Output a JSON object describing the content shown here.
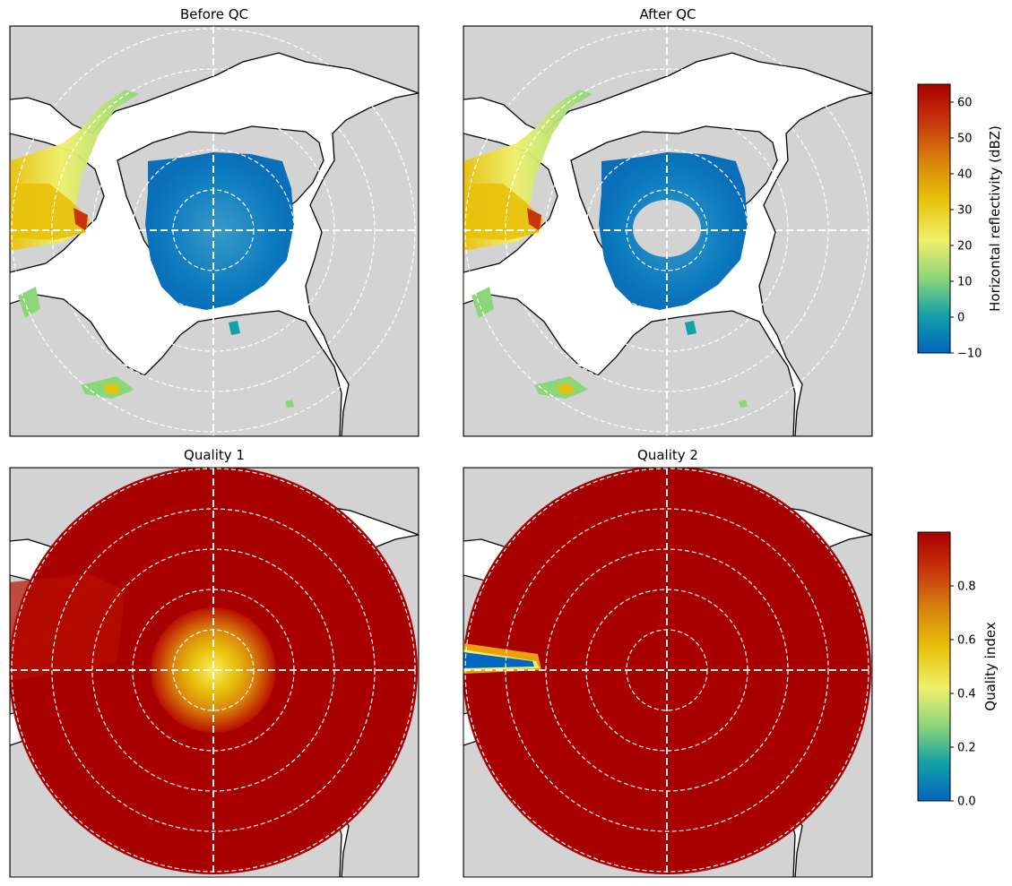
{
  "panels": [
    {
      "title": "Before QC"
    },
    {
      "title": "After QC"
    },
    {
      "title": "Quality 1"
    },
    {
      "title": "Quality 2"
    }
  ],
  "colors": {
    "land": "#d3d3d3",
    "sea": "#ffffff",
    "coast": "#000000",
    "grid": "#ffffff",
    "quality_high": "#a80000"
  },
  "chart_data": [
    {
      "type": "heatmap",
      "title": "Before QC",
      "variable": "reflectivity",
      "description_values": {
        "clutter_near_radar": "present",
        "range_rings": 5,
        "crosshair": true
      }
    },
    {
      "type": "heatmap",
      "title": "After QC",
      "variable": "reflectivity",
      "description_values": {
        "clutter_near_radar": "removed",
        "range_rings": 5,
        "crosshair": true
      }
    },
    {
      "type": "heatmap",
      "title": "Quality 1",
      "variable": "quality",
      "description_values": {
        "center_quality": 0.5,
        "outer_quality": 0.95
      }
    },
    {
      "type": "heatmap",
      "title": "Quality 2",
      "variable": "quality",
      "description_values": {
        "wedge_quality": 0.0,
        "outer_quality": 0.98
      }
    }
  ],
  "colorbars": [
    {
      "label": "Horizontal reflectivity (dBZ)",
      "min": -10,
      "max": 65,
      "ticks": [
        "−10",
        "0",
        "10",
        "20",
        "30",
        "40",
        "50",
        "60"
      ],
      "tick_values": [
        -10,
        0,
        10,
        20,
        30,
        40,
        50,
        60
      ],
      "colors": [
        "#0066c0",
        "#13a0a6",
        "#8cd67a",
        "#f0f06a",
        "#e8c10a",
        "#d9850c",
        "#c7350c",
        "#a80000"
      ]
    },
    {
      "label": "Quality index",
      "min": 0,
      "max": 1,
      "ticks": [
        "0.0",
        "0.2",
        "0.4",
        "0.6",
        "0.8"
      ],
      "tick_values": [
        0.0,
        0.2,
        0.4,
        0.6,
        0.8
      ],
      "colors": [
        "#0066c0",
        "#13a0a6",
        "#8cd67a",
        "#f0f06a",
        "#e8c10a",
        "#d9850c",
        "#c7350c",
        "#a80000"
      ]
    }
  ]
}
